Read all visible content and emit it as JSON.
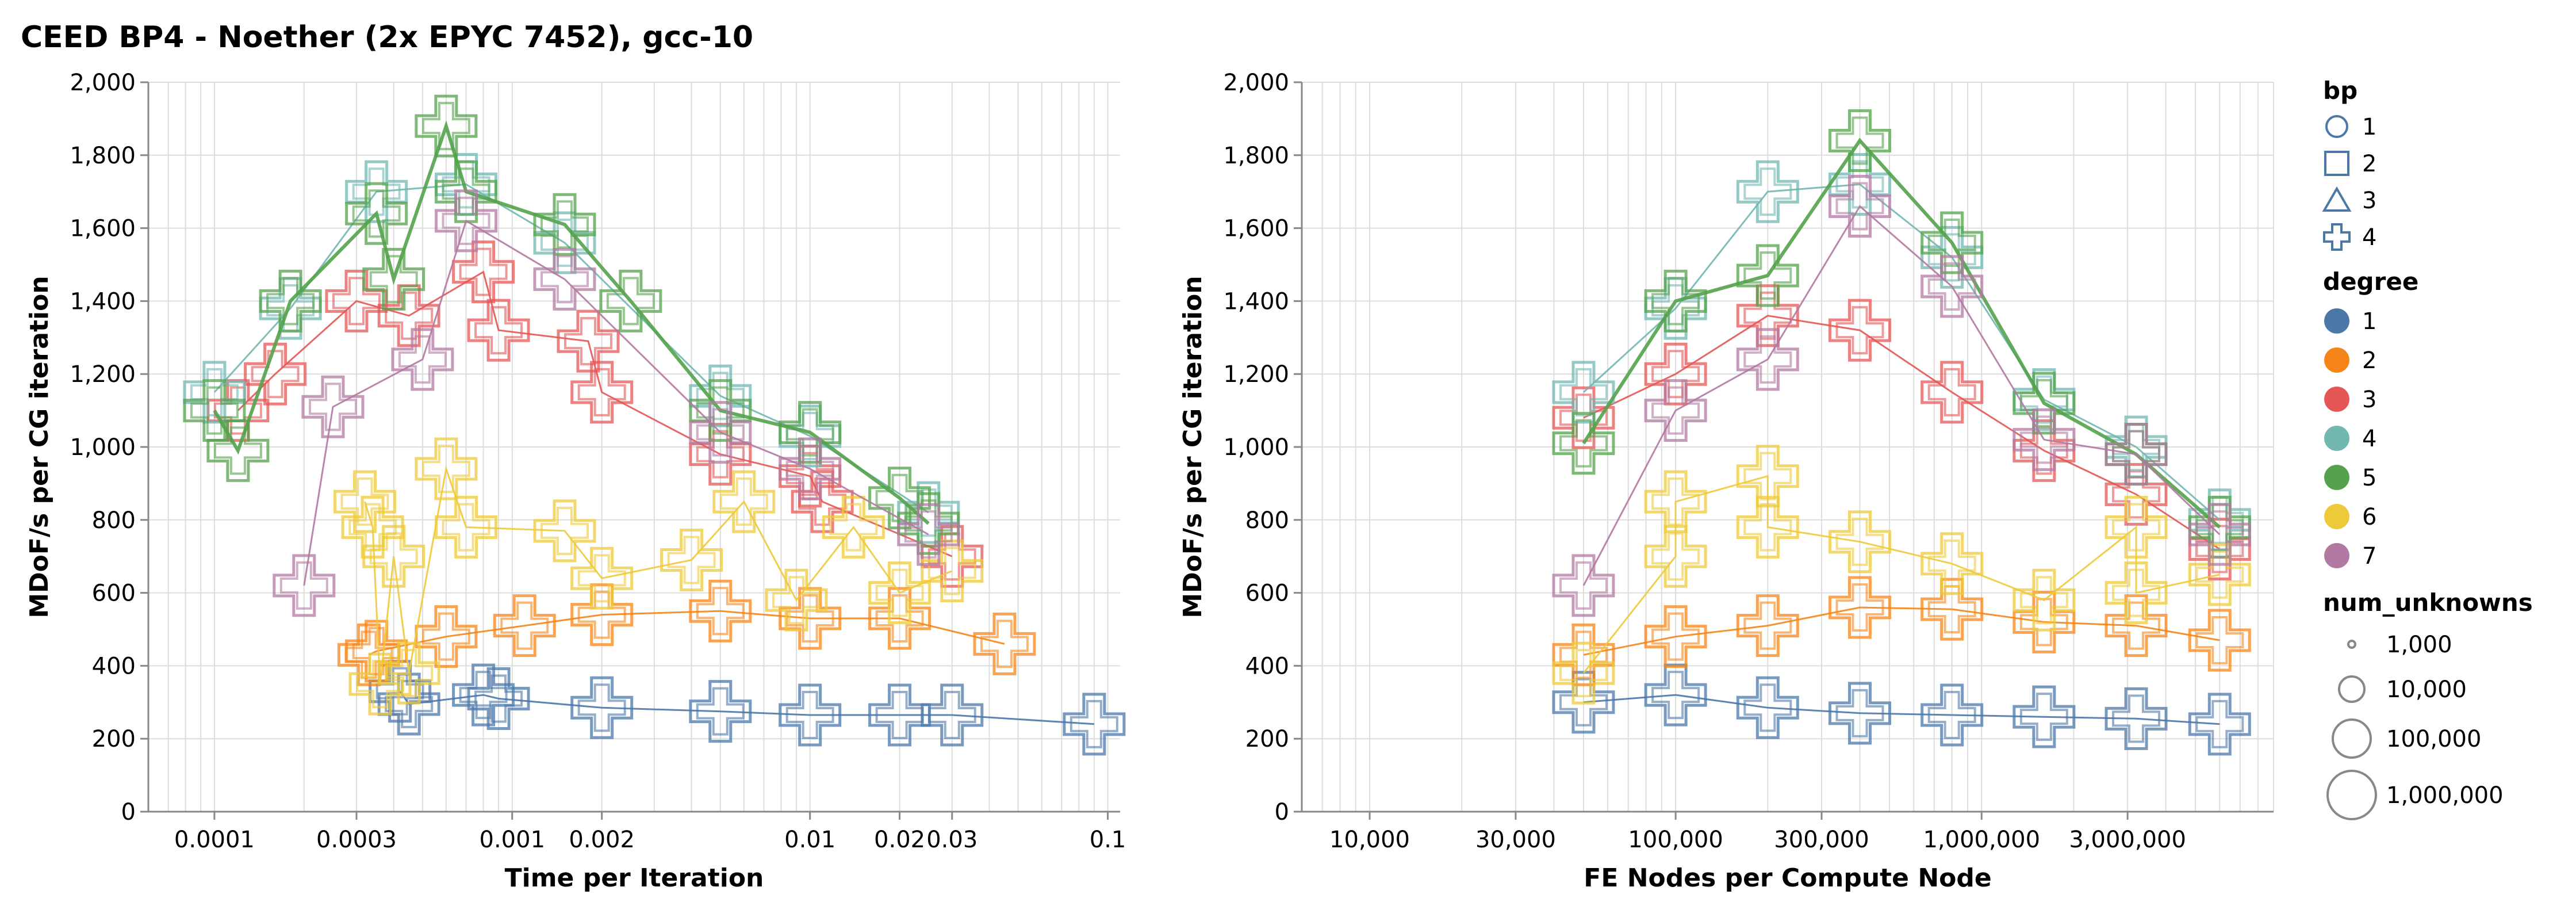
{
  "page": {
    "title": "CEED BP4 - Noether (2x EPYC 7452), gcc-10"
  },
  "colors": {
    "degree": {
      "1": "#4c78a8",
      "2": "#f58518",
      "3": "#e45756",
      "4": "#72b7b2",
      "5": "#54a24b",
      "6": "#eeca3b",
      "7": "#b279a2"
    },
    "grid": "#dddddd",
    "axis": "#888888",
    "legend_shape_stroke": "#4c78a8"
  },
  "legend": {
    "bp": {
      "title": "bp",
      "items": [
        {
          "label": "1",
          "shape": "circle"
        },
        {
          "label": "2",
          "shape": "square"
        },
        {
          "label": "3",
          "shape": "triangle"
        },
        {
          "label": "4",
          "shape": "cross"
        }
      ]
    },
    "degree": {
      "title": "degree",
      "items": [
        "1",
        "2",
        "3",
        "4",
        "5",
        "6",
        "7"
      ]
    },
    "num_unknowns": {
      "title": "num_unknowns",
      "items": [
        {
          "label": "1,000",
          "value": 1000
        },
        {
          "label": "10,000",
          "value": 10000
        },
        {
          "label": "100,000",
          "value": 100000
        },
        {
          "label": "1,000,000",
          "value": 1000000
        }
      ]
    }
  },
  "chart_data": [
    {
      "type": "line",
      "title": "",
      "xlabel": "Time per Iteration",
      "ylabel": "MDoF/s per CG iteration",
      "x_scale": "log",
      "xlim": [
        6e-05,
        0.11
      ],
      "ylim": [
        0,
        2000
      ],
      "x_ticks": [
        {
          "value": 0.0001,
          "label": "0.0001"
        },
        {
          "value": 0.0003,
          "label": "0.0003"
        },
        {
          "value": 0.001,
          "label": "0.001"
        },
        {
          "value": 0.002,
          "label": "0.002"
        },
        {
          "value": 0.01,
          "label": "0.01"
        },
        {
          "value": 0.02,
          "label": "0.02"
        },
        {
          "value": 0.03,
          "label": "0.03"
        },
        {
          "value": 0.1,
          "label": "0.1"
        }
      ],
      "y_ticks": [
        {
          "value": 0,
          "label": "0"
        },
        {
          "value": 200,
          "label": "200"
        },
        {
          "value": 400,
          "label": "400"
        },
        {
          "value": 600,
          "label": "600"
        },
        {
          "value": 800,
          "label": "800"
        },
        {
          "value": 1000,
          "label": "1,000"
        },
        {
          "value": 1200,
          "label": "1,200"
        },
        {
          "value": 1400,
          "label": "1,400"
        },
        {
          "value": 1600,
          "label": "1,600"
        },
        {
          "value": 1800,
          "label": "1,800"
        },
        {
          "value": 2000,
          "label": "2,000"
        }
      ],
      "grid": true,
      "series": [
        {
          "degree": "1",
          "points": [
            [
              0.00042,
              330
            ],
            [
              0.00045,
              295
            ],
            [
              0.0008,
              320
            ],
            [
              0.0009,
              310
            ],
            [
              0.002,
              285
            ],
            [
              0.005,
              275
            ],
            [
              0.01,
              265
            ],
            [
              0.02,
              265
            ],
            [
              0.03,
              265
            ],
            [
              0.09,
              240
            ]
          ]
        },
        {
          "degree": "2",
          "points": [
            [
              0.00033,
              430
            ],
            [
              0.00035,
              440
            ],
            [
              0.0006,
              480
            ],
            [
              0.0011,
              510
            ],
            [
              0.002,
              540
            ],
            [
              0.005,
              550
            ],
            [
              0.01,
              530
            ],
            [
              0.02,
              530
            ],
            [
              0.045,
              460
            ]
          ]
        },
        {
          "degree": "3",
          "points": [
            [
              0.00012,
              1100
            ],
            [
              0.00016,
              1200
            ],
            [
              0.0003,
              1400
            ],
            [
              0.00045,
              1360
            ],
            [
              0.0008,
              1480
            ],
            [
              0.0009,
              1320
            ],
            [
              0.0018,
              1290
            ],
            [
              0.002,
              1150
            ],
            [
              0.005,
              980
            ],
            [
              0.01,
              920
            ],
            [
              0.011,
              850
            ],
            [
              0.03,
              700
            ]
          ]
        },
        {
          "degree": "4",
          "points": [
            [
              0.0001,
              1150
            ],
            [
              0.00018,
              1380
            ],
            [
              0.00035,
              1700
            ],
            [
              0.0007,
              1720
            ],
            [
              0.0015,
              1560
            ],
            [
              0.005,
              1140
            ],
            [
              0.01,
              1030
            ],
            [
              0.025,
              820
            ]
          ]
        },
        {
          "degree": "5",
          "points": [
            [
              0.0001,
              1100
            ],
            [
              0.00012,
              990
            ],
            [
              0.00018,
              1400
            ],
            [
              0.00035,
              1640
            ],
            [
              0.0004,
              1460
            ],
            [
              0.0006,
              1880
            ],
            [
              0.0007,
              1700
            ],
            [
              0.0015,
              1610
            ],
            [
              0.0025,
              1400
            ],
            [
              0.005,
              1100
            ],
            [
              0.01,
              1040
            ],
            [
              0.02,
              860
            ],
            [
              0.025,
              790
            ]
          ]
        },
        {
          "degree": "6",
          "points": [
            [
              0.00032,
              850
            ],
            [
              0.00034,
              780
            ],
            [
              0.00036,
              350
            ],
            [
              0.0004,
              700
            ],
            [
              0.00045,
              380
            ],
            [
              0.0006,
              940
            ],
            [
              0.0007,
              780
            ],
            [
              0.0015,
              770
            ],
            [
              0.002,
              640
            ],
            [
              0.004,
              690
            ],
            [
              0.006,
              850
            ],
            [
              0.009,
              580
            ],
            [
              0.014,
              780
            ],
            [
              0.02,
              600
            ],
            [
              0.03,
              660
            ]
          ]
        },
        {
          "degree": "7",
          "points": [
            [
              0.0002,
              620
            ],
            [
              0.00025,
              1110
            ],
            [
              0.0005,
              1240
            ],
            [
              0.0007,
              1620
            ],
            [
              0.0015,
              1460
            ],
            [
              0.005,
              1040
            ],
            [
              0.01,
              940
            ],
            [
              0.025,
              760
            ]
          ]
        }
      ]
    },
    {
      "type": "line",
      "title": "",
      "xlabel": "FE Nodes per Compute Node",
      "ylabel": "MDoF/s per CG iteration",
      "x_scale": "log",
      "xlim": [
        6000,
        9000000
      ],
      "ylim": [
        0,
        2000
      ],
      "x_ticks": [
        {
          "value": 10000,
          "label": "10,000"
        },
        {
          "value": 30000,
          "label": "30,000"
        },
        {
          "value": 100000,
          "label": "100,000"
        },
        {
          "value": 300000,
          "label": "300,000"
        },
        {
          "value": 1000000,
          "label": "1,000,000"
        },
        {
          "value": 3000000,
          "label": "3,000,000"
        }
      ],
      "y_ticks": [
        {
          "value": 0,
          "label": "0"
        },
        {
          "value": 200,
          "label": "200"
        },
        {
          "value": 400,
          "label": "400"
        },
        {
          "value": 600,
          "label": "600"
        },
        {
          "value": 800,
          "label": "800"
        },
        {
          "value": 1000,
          "label": "1,000"
        },
        {
          "value": 1200,
          "label": "1,200"
        },
        {
          "value": 1400,
          "label": "1,400"
        },
        {
          "value": 1600,
          "label": "1,600"
        },
        {
          "value": 1800,
          "label": "1,800"
        },
        {
          "value": 2000,
          "label": "2,000"
        }
      ],
      "grid": true,
      "series": [
        {
          "degree": "1",
          "points": [
            [
              50000,
              300
            ],
            [
              100000,
              320
            ],
            [
              200000,
              285
            ],
            [
              400000,
              270
            ],
            [
              800000,
              265
            ],
            [
              1600000,
              260
            ],
            [
              3200000,
              255
            ],
            [
              6000000,
              240
            ]
          ]
        },
        {
          "degree": "2",
          "points": [
            [
              50000,
              430
            ],
            [
              100000,
              480
            ],
            [
              200000,
              510
            ],
            [
              400000,
              560
            ],
            [
              800000,
              555
            ],
            [
              1600000,
              520
            ],
            [
              3200000,
              510
            ],
            [
              6000000,
              470
            ]
          ]
        },
        {
          "degree": "3",
          "points": [
            [
              50000,
              1080
            ],
            [
              100000,
              1200
            ],
            [
              200000,
              1360
            ],
            [
              400000,
              1320
            ],
            [
              800000,
              1150
            ],
            [
              1600000,
              990
            ],
            [
              3200000,
              870
            ],
            [
              6000000,
              720
            ]
          ]
        },
        {
          "degree": "4",
          "points": [
            [
              50000,
              1150
            ],
            [
              100000,
              1380
            ],
            [
              200000,
              1700
            ],
            [
              400000,
              1720
            ],
            [
              800000,
              1520
            ],
            [
              1600000,
              1130
            ],
            [
              3200000,
              1000
            ],
            [
              6000000,
              800
            ]
          ]
        },
        {
          "degree": "5",
          "points": [
            [
              50000,
              1010
            ],
            [
              100000,
              1400
            ],
            [
              200000,
              1470
            ],
            [
              400000,
              1840
            ],
            [
              800000,
              1560
            ],
            [
              1600000,
              1120
            ],
            [
              3200000,
              980
            ],
            [
              6000000,
              780
            ]
          ]
        },
        {
          "degree": "6",
          "points": [
            [
              50000,
              380
            ],
            [
              100000,
              700
            ],
            [
              100000,
              850
            ],
            [
              200000,
              920
            ],
            [
              200000,
              780
            ],
            [
              400000,
              740
            ],
            [
              800000,
              680
            ],
            [
              1600000,
              580
            ],
            [
              3200000,
              780
            ],
            [
              3200000,
              600
            ],
            [
              6000000,
              650
            ]
          ]
        },
        {
          "degree": "7",
          "points": [
            [
              50000,
              620
            ],
            [
              100000,
              1100
            ],
            [
              200000,
              1240
            ],
            [
              400000,
              1660
            ],
            [
              800000,
              1440
            ],
            [
              1600000,
              1020
            ],
            [
              3200000,
              980
            ],
            [
              6000000,
              760
            ]
          ]
        }
      ]
    }
  ]
}
